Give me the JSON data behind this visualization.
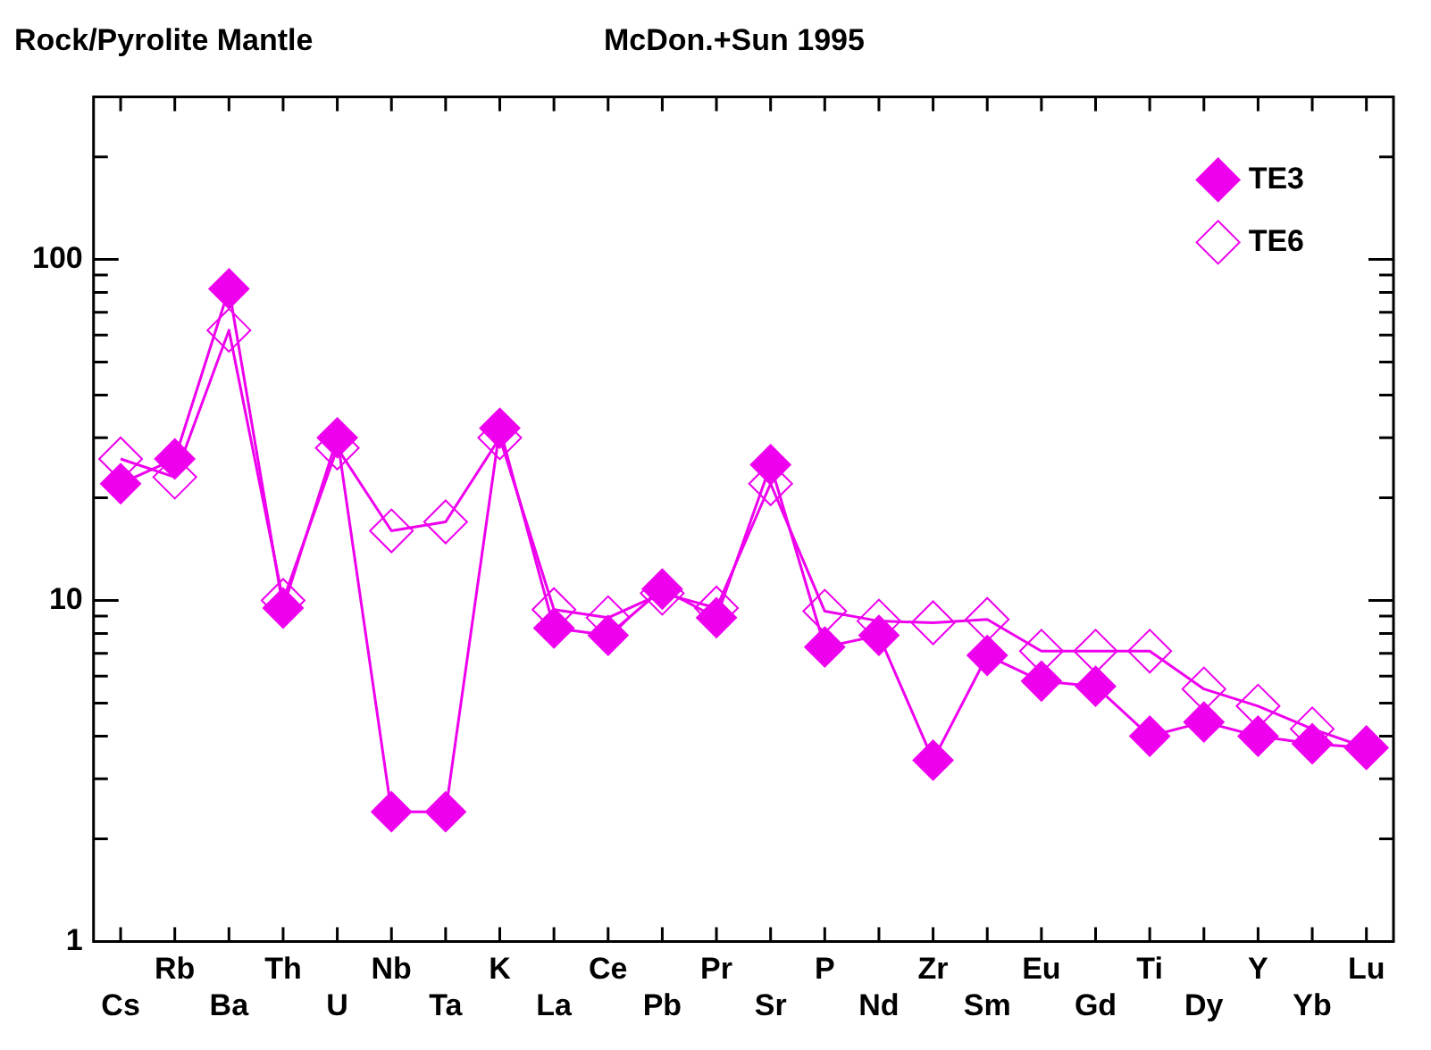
{
  "chart_data": {
    "type": "line",
    "title": "Rock/Pyrolite Mantle",
    "subtitle": "McDon.+Sun 1995",
    "categories": [
      "Cs",
      "Rb",
      "Ba",
      "Th",
      "U",
      "Nb",
      "Ta",
      "K",
      "La",
      "Ce",
      "Pb",
      "Pr",
      "Sr",
      "P",
      "Nd",
      "Zr",
      "Sm",
      "Eu",
      "Gd",
      "Ti",
      "Dy",
      "Y",
      "Yb",
      "Lu"
    ],
    "series": [
      {
        "name": "TE3",
        "color": "#ee00ee",
        "marker": "diamond",
        "values": [
          22,
          26,
          82,
          9.5,
          30,
          2.4,
          2.4,
          32,
          8.3,
          7.9,
          10.8,
          8.9,
          25,
          7.3,
          7.9,
          3.4,
          6.9,
          5.8,
          5.6,
          4.0,
          4.4,
          4.0,
          3.8,
          3.7
        ]
      },
      {
        "name": "TE6",
        "color": "#ee00ee",
        "marker": "diamond",
        "values": [
          26,
          23,
          62,
          10,
          28,
          16,
          17,
          30,
          9.4,
          8.9,
          10.5,
          9.5,
          22,
          9.3,
          8.7,
          8.6,
          8.8,
          7.1,
          7.1,
          7.1,
          5.5,
          4.9,
          4.2,
          3.7
        ]
      }
    ],
    "log": true,
    "ylim": [
      1,
      300
    ],
    "yticks": [
      1,
      {
        "value": 2,
        "label": null
      },
      {
        "value": 3,
        "label": null
      },
      {
        "value": 4,
        "label": null
      },
      {
        "value": 5,
        "label": null
      },
      {
        "value": 6,
        "label": null
      },
      {
        "value": 7,
        "label": null
      },
      {
        "value": 8,
        "label": null
      },
      {
        "value": 9,
        "label": null
      },
      10,
      {
        "value": 20,
        "label": null
      },
      {
        "value": 30,
        "label": null
      },
      {
        "value": 40,
        "label": null
      },
      {
        "value": 50,
        "label": null
      },
      {
        "value": 60,
        "label": null
      },
      {
        "value": 70,
        "label": null
      },
      {
        "value": 80,
        "label": null
      },
      {
        "value": 90,
        "label": null
      },
      100,
      {
        "value": 200,
        "label": null
      },
      {
        "value": 300,
        "label": null
      }
    ],
    "grid": false,
    "legend": "top right",
    "line_style": "solid"
  }
}
